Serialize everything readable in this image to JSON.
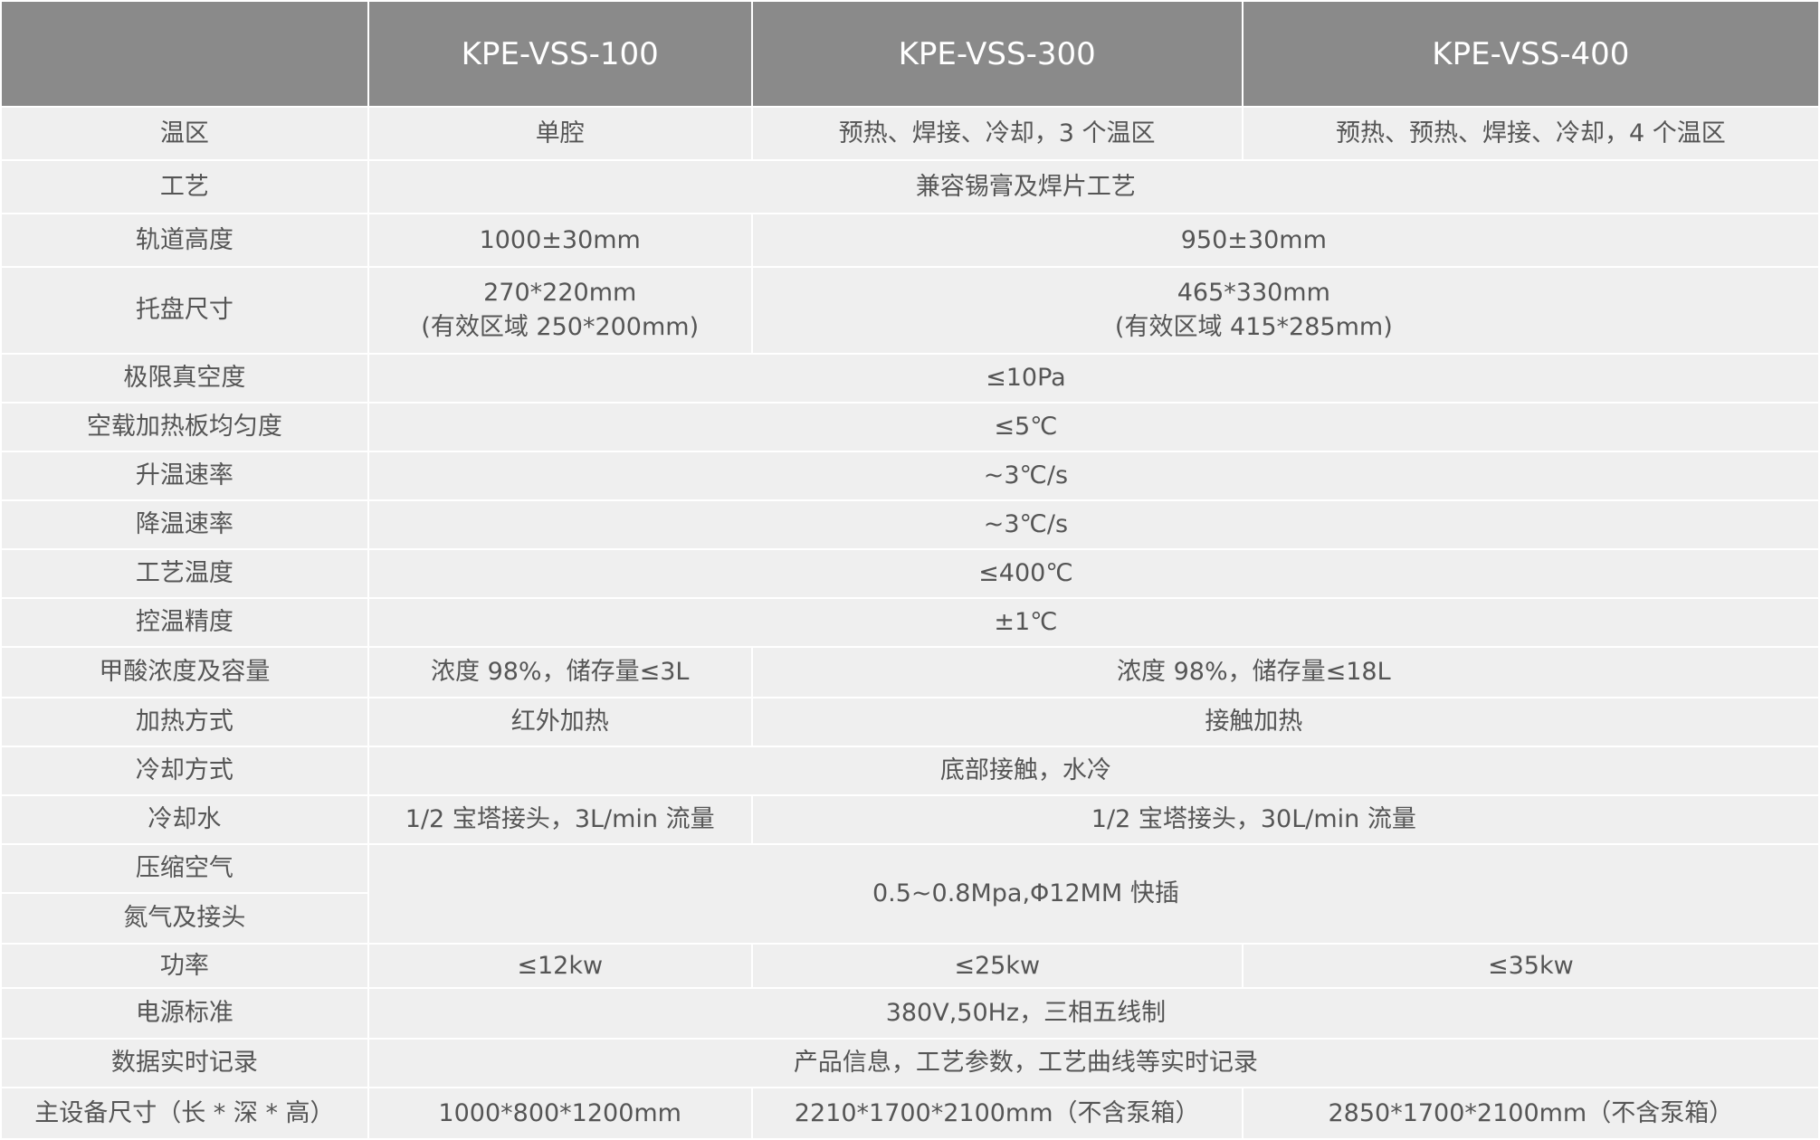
{
  "header": {
    "blank": "",
    "models": [
      "KPE-VSS-100",
      "KPE-VSS-300",
      "KPE-VSS-400"
    ]
  },
  "rows": {
    "zones": {
      "label": "温区",
      "v100": "单腔",
      "v300": "预热、焊接、冷却，3 个温区",
      "v400": "预热、预热、焊接、冷却，4 个温区"
    },
    "process": {
      "label": "工艺",
      "all": "兼容锡膏及焊片工艺"
    },
    "rail_height": {
      "label": "轨道高度",
      "v100": "1000±30mm",
      "v300_400": "950±30mm"
    },
    "tray_size": {
      "label": "托盘尺寸",
      "v100_line1": "270*220mm",
      "v100_line2": "(有效区域 250*200mm)",
      "v300_400_line1": "465*330mm",
      "v300_400_line2": "(有效区域 415*285mm)"
    },
    "vacuum": {
      "label": "极限真空度",
      "all": "≤10Pa"
    },
    "uniformity": {
      "label": "空载加热板均匀度",
      "all": "≤5℃"
    },
    "heat_rate": {
      "label": "升温速率",
      "all": "~3℃/s"
    },
    "cool_rate": {
      "label": "降温速率",
      "all": "~3℃/s"
    },
    "process_temp": {
      "label": "工艺温度",
      "all": "≤400℃"
    },
    "temp_accuracy": {
      "label": "控温精度",
      "all": "±1℃"
    },
    "formic_acid": {
      "label": "甲酸浓度及容量",
      "v100": "浓度 98%，储存量≤3L",
      "v300_400": "浓度 98%，储存量≤18L"
    },
    "heating": {
      "label": "加热方式",
      "v100": "红外加热",
      "v300_400": "接触加热"
    },
    "cooling": {
      "label": "冷却方式",
      "all": "底部接触，水冷"
    },
    "cooling_water": {
      "label": "冷却水",
      "v100": "1/2 宝塔接头，3L/min 流量",
      "v300_400": "1/2 宝塔接头，30L/min 流量"
    },
    "compressed_air": {
      "label": "压缩空气"
    },
    "nitrogen": {
      "label": "氮气及接头",
      "shared": "0.5~0.8Mpa,Φ12MM 快插"
    },
    "power": {
      "label": "功率",
      "v100": "≤12kw",
      "v300": "≤25kw",
      "v400": "≤35kw"
    },
    "power_supply": {
      "label": "电源标准",
      "all": "380V,50Hz，三相五线制"
    },
    "data_log": {
      "label": "数据实时记录",
      "all": "产品信息，工艺参数，工艺曲线等实时记录"
    },
    "dimensions": {
      "label": "主设备尺寸（长 * 深 * 高）",
      "v100": "1000*800*1200mm",
      "v300": "2210*1700*2100mm（不含泵箱）",
      "v400": "2850*1700*2100mm（不含泵箱）"
    }
  },
  "colors": {
    "header_bg": "#8a8a8a",
    "cell_bg": "#efefef",
    "text": "#555555",
    "border": "#ffffff"
  }
}
